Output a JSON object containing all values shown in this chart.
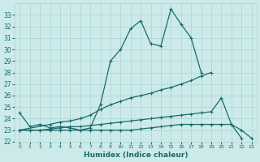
{
  "xlabel": "Humidex (Indice chaleur)",
  "xlim": [
    -0.5,
    23.5
  ],
  "ylim": [
    22,
    34
  ],
  "yticks": [
    22,
    23,
    24,
    25,
    26,
    27,
    28,
    29,
    30,
    31,
    32,
    33
  ],
  "xticks": [
    0,
    1,
    2,
    3,
    4,
    5,
    6,
    7,
    8,
    9,
    10,
    11,
    12,
    13,
    14,
    15,
    16,
    17,
    18,
    19,
    20,
    21,
    22,
    23
  ],
  "bg_color": "#cceaea",
  "line_color": "#1a6b6b",
  "grid_color": "#aad4d4",
  "line1_x": [
    0,
    1,
    2,
    3,
    4,
    5,
    6,
    7,
    8,
    9,
    10,
    11,
    12,
    13,
    14,
    15,
    16,
    17,
    18
  ],
  "line1_y": [
    24.5,
    23.3,
    23.5,
    23.2,
    23.3,
    23.2,
    23.0,
    23.2,
    25.2,
    29.0,
    30.0,
    31.8,
    32.5,
    30.5,
    30.3,
    33.5,
    32.2,
    31.0,
    28.0
  ],
  "line2_x": [
    0,
    3,
    4,
    5,
    6,
    7,
    8,
    9,
    10,
    11,
    12,
    13,
    14,
    15,
    16,
    17,
    18,
    19
  ],
  "line2_y": [
    23.0,
    23.5,
    23.7,
    23.8,
    24.0,
    24.3,
    24.8,
    25.2,
    25.5,
    25.8,
    26.0,
    26.2,
    26.5,
    26.7,
    27.0,
    27.3,
    27.7,
    28.0
  ],
  "line3_x": [
    0,
    1,
    2,
    3,
    4,
    5,
    6,
    7,
    8,
    9,
    10,
    11,
    12,
    13,
    14,
    15,
    16,
    17,
    18,
    19,
    20,
    21,
    22
  ],
  "line3_y": [
    23.0,
    23.0,
    23.0,
    23.1,
    23.2,
    23.3,
    23.3,
    23.4,
    23.5,
    23.6,
    23.7,
    23.8,
    23.9,
    24.0,
    24.1,
    24.2,
    24.3,
    24.4,
    24.5,
    24.6,
    25.8,
    23.5,
    22.3
  ],
  "line4_x": [
    0,
    1,
    2,
    3,
    4,
    5,
    6,
    7,
    8,
    9,
    10,
    11,
    12,
    13,
    14,
    15,
    16,
    17,
    18,
    19,
    20,
    21,
    22,
    23
  ],
  "line4_y": [
    23.0,
    23.0,
    23.0,
    23.0,
    23.0,
    23.0,
    23.0,
    23.0,
    23.0,
    23.0,
    23.0,
    23.0,
    23.1,
    23.2,
    23.3,
    23.4,
    23.5,
    23.5,
    23.5,
    23.5,
    23.5,
    23.5,
    23.0,
    22.3
  ]
}
